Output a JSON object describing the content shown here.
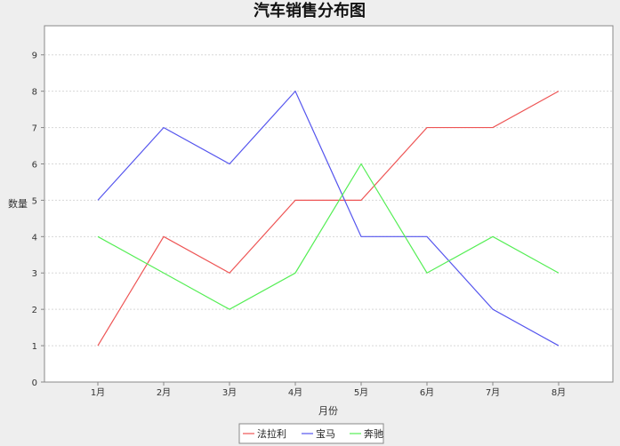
{
  "chart_data": {
    "type": "line",
    "title": "汽车销售分布图",
    "xlabel": "月份",
    "ylabel": "数量",
    "categories": [
      "1月",
      "2月",
      "3月",
      "4月",
      "5月",
      "6月",
      "7月",
      "8月"
    ],
    "ylim": [
      0,
      9.8
    ],
    "yticks": [
      "0",
      "1",
      "2",
      "3",
      "4",
      "5",
      "6",
      "7",
      "8",
      "9"
    ],
    "grid": true,
    "legend_position": "bottom",
    "series": [
      {
        "name": "法拉利",
        "color": "#ee5555",
        "values": [
          1,
          4,
          3,
          5,
          5,
          7,
          7,
          8
        ]
      },
      {
        "name": "宝马",
        "color": "#5555ee",
        "values": [
          5,
          7,
          6,
          8,
          4,
          4,
          2,
          1
        ]
      },
      {
        "name": "奔驰",
        "color": "#55ee55",
        "values": [
          4,
          3,
          2,
          3,
          6,
          3,
          4,
          3
        ]
      }
    ]
  }
}
